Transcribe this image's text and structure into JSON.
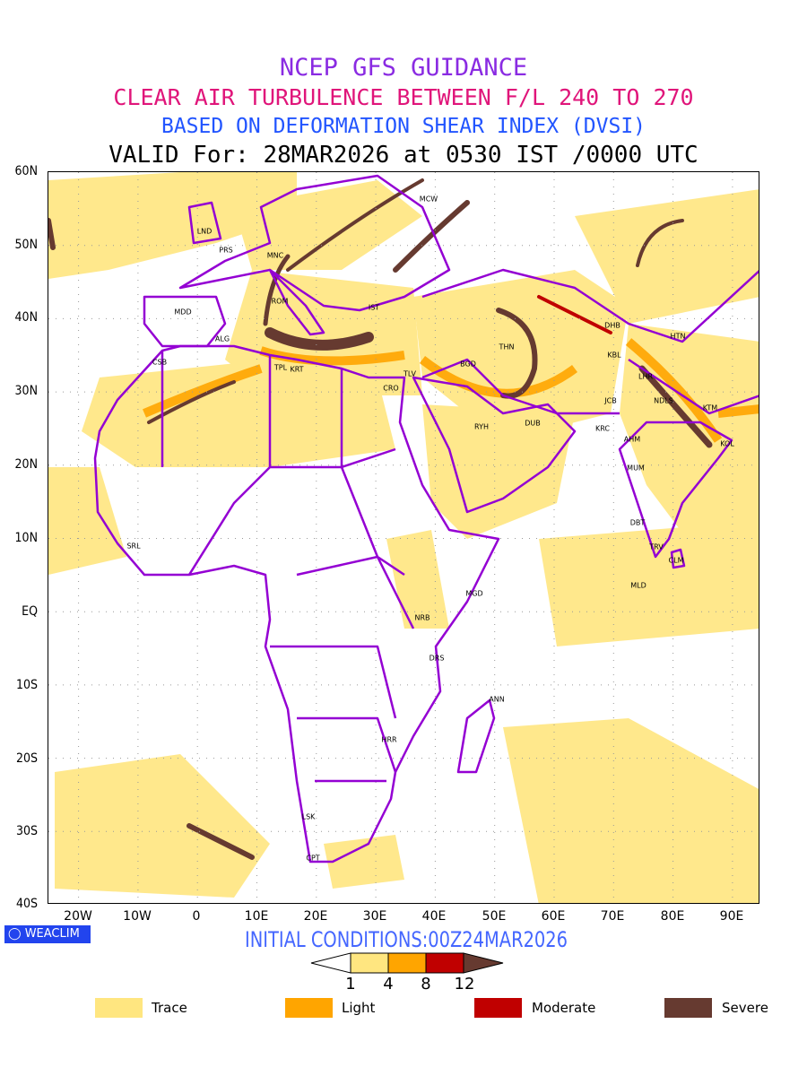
{
  "title": {
    "line1": "NCEP GFS GUIDANCE",
    "line2": "CLEAR AIR TURBULENCE BETWEEN F/L 240 TO 270",
    "line3": "BASED ON DEFORMATION SHEAR INDEX (DVSI)",
    "line4": "VALID For: 28MAR2026 at 0530 IST /0000 UTC"
  },
  "axes": {
    "lat_labels": [
      "60N",
      "50N",
      "40N",
      "30N",
      "20N",
      "10N",
      "EQ",
      "10S",
      "20S",
      "30S",
      "40S"
    ],
    "lon_labels": [
      "20W",
      "10W",
      "0",
      "10E",
      "20E",
      "30E",
      "40E",
      "50E",
      "60E",
      "70E",
      "80E",
      "90E"
    ]
  },
  "cities": [
    "LND",
    "PRS",
    "MNC",
    "ROM",
    "MDD",
    "IST",
    "ALG",
    "CSB",
    "TPL",
    "KRT",
    "TLV",
    "CRO",
    "MCW",
    "THN",
    "BGD",
    "DHB",
    "HTN",
    "KBL",
    "LHR",
    "JCB",
    "NDLS",
    "KTM",
    "RYH",
    "DUB",
    "KRC",
    "AHM",
    "KOL",
    "MUM",
    "DBT",
    "TRV",
    "CLM",
    "MLD",
    "SRL",
    "MGD",
    "NRB",
    "DRS",
    "ANN",
    "HRR",
    "LSK",
    "CPT"
  ],
  "logo": "WEACLIM",
  "initial_conditions": "INITIAL CONDITIONS:00Z24MAR2026",
  "colorbar": {
    "labels": [
      "1",
      "4",
      "8",
      "12"
    ],
    "colors": [
      "#ffe680",
      "#ffa500",
      "#c00000",
      "#663a30"
    ]
  },
  "legend": [
    {
      "label": "Trace",
      "color": "#ffe680"
    },
    {
      "label": "Light",
      "color": "#ffa500"
    },
    {
      "label": "Moderate",
      "color": "#c00000"
    },
    {
      "label": "Severe",
      "color": "#663a30"
    }
  ],
  "colors": {
    "boundaries": "#9400d3"
  }
}
